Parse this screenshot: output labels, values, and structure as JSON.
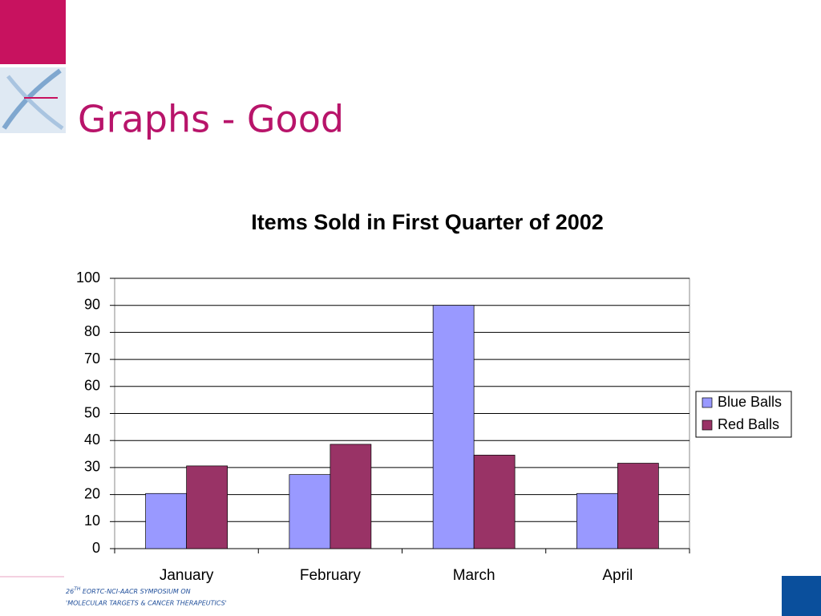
{
  "slide_title": "Graphs - Good",
  "footer": {
    "line1": [
      "26",
      "TH",
      " EORTC-NCI-AACR SYMPOSIUM ON"
    ],
    "line2": "'MOLECULAR TARGETS & CANCER THERAPEUTICS'"
  },
  "chart_data": {
    "type": "bar",
    "title": "Items Sold in First Quarter of 2002",
    "categories": [
      "January",
      "February",
      "March",
      "April"
    ],
    "series": [
      {
        "name": "Blue Balls",
        "color": "#9999ff",
        "values": [
          20.4,
          27.4,
          90,
          20.4
        ]
      },
      {
        "name": "Red Balls",
        "color": "#993366",
        "values": [
          30.6,
          38.6,
          34.6,
          31.6
        ]
      }
    ],
    "ylim": [
      0,
      100
    ],
    "yticks": [
      0,
      10,
      20,
      30,
      40,
      50,
      60,
      70,
      80,
      90,
      100
    ],
    "grid": true,
    "legend": "right"
  }
}
